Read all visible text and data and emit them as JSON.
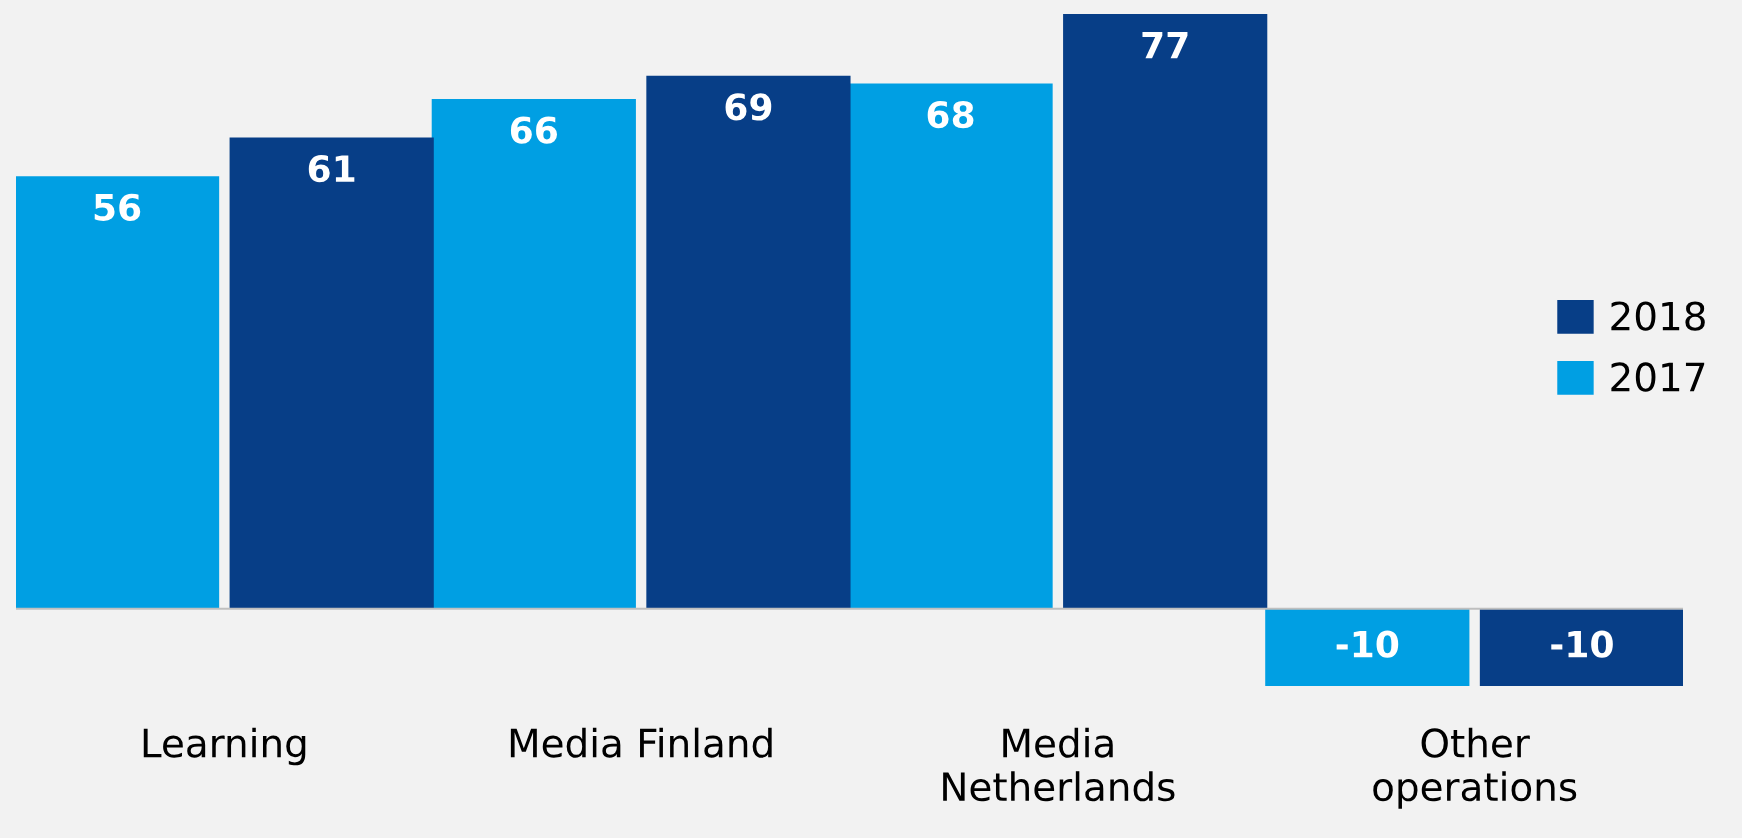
{
  "chart_data": {
    "type": "bar",
    "categories": [
      "Learning",
      "Media Finland",
      "Media\nNetherlands",
      "Other\noperations"
    ],
    "series": [
      {
        "name": "2017",
        "color": "#009fe3",
        "values": [
          56,
          66,
          68,
          -10
        ]
      },
      {
        "name": "2018",
        "color": "#073e87",
        "values": [
          61,
          69,
          77,
          -10
        ]
      }
    ],
    "data_labels": true,
    "legend": "right",
    "grid": false
  }
}
